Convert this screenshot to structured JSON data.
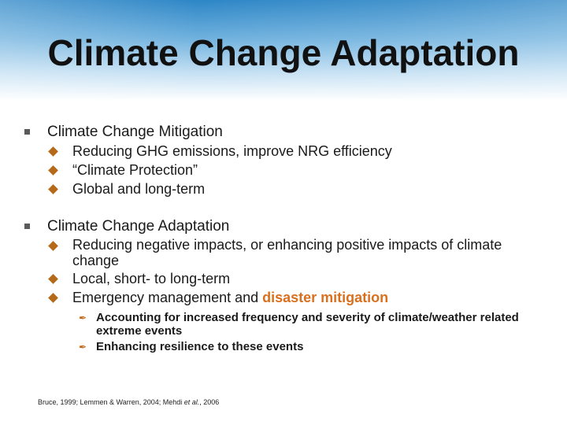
{
  "slide": {
    "title": "Climate Change Adaptation",
    "sections": [
      {
        "heading": "Climate Change Mitigation",
        "items": [
          "Reducing GHG emissions, improve NRG efficiency",
          "“Climate Protection”",
          "Global and long-term"
        ]
      },
      {
        "heading": "Climate Change Adaptation",
        "items": [
          "Reducing negative impacts, or enhancing positive impacts of climate change",
          "Local, short- to long-term",
          "Emergency management and "
        ],
        "highlight": "disaster mitigation",
        "subitems": [
          "Accounting for increased frequency and severity of climate/weather related extreme events",
          "Enhancing resilience to these events"
        ]
      }
    ],
    "citation": {
      "pre": "Bruce, 1999; Lemmen & Warren, 2004; Mehdi ",
      "italic": "et al.",
      "post": ", 2006"
    }
  },
  "colors": {
    "accent": "#d9701e",
    "header_blue": "#2d86c6",
    "diamond": "#b56a1a"
  }
}
